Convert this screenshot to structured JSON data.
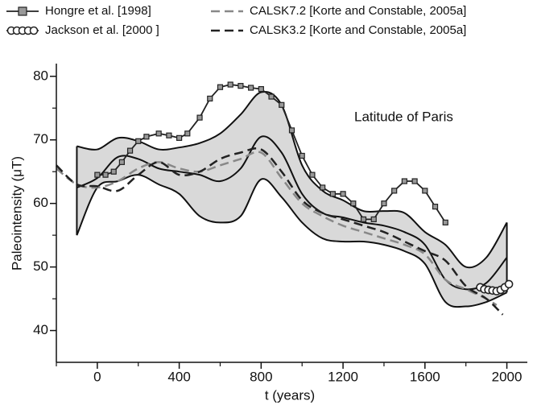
{
  "chart_data": {
    "type": "line",
    "ylabel": "Paleointensity (μT)",
    "xlabel": "t (years)",
    "annotation": "Latitude of Paris",
    "xlim": [
      -200,
      2100
    ],
    "xticks": [
      0,
      400,
      800,
      1200,
      1600,
      2000
    ],
    "xminorticks": [
      -200,
      200,
      600,
      1000,
      1400,
      1800
    ],
    "ylim": [
      35,
      82
    ],
    "yticks": [
      40,
      50,
      60,
      70,
      80
    ],
    "yminorticks": [
      45,
      55,
      65,
      75
    ],
    "legend": "top-left",
    "band": {
      "color": "#d9d9d9",
      "x": [
        -100,
        0,
        100,
        200,
        300,
        400,
        500,
        600,
        700,
        800,
        900,
        1000,
        1100,
        1200,
        1300,
        1400,
        1500,
        1600,
        1700,
        1800,
        1900,
        2000
      ],
      "upper": [
        69,
        68.5,
        70.3,
        69.8,
        68.5,
        68.8,
        69.5,
        71,
        74,
        77.5,
        75.5,
        66,
        62,
        60.5,
        58.8,
        58.8,
        58.5,
        55.5,
        53.5,
        50,
        51.5,
        57
      ],
      "lower": [
        55,
        62.5,
        63.5,
        64.5,
        63,
        61.5,
        58,
        57,
        58,
        63.8,
        61,
        57,
        54.5,
        54,
        54,
        53.5,
        52.5,
        50.5,
        44.5,
        43.8,
        44.5,
        46
      ],
      "center": [
        62.5,
        64,
        67.3,
        67,
        65.5,
        65,
        64.5,
        63.5,
        65.5,
        70.5,
        68,
        61.5,
        58.5,
        57.8,
        57,
        56.5,
        55.5,
        53.5,
        48,
        46.5,
        47.5,
        51.5
      ]
    },
    "series": [
      {
        "name": "Hongre et al. [1998]",
        "color": "#222222",
        "marker": "square",
        "dash": false,
        "x": [
          0,
          40,
          80,
          120,
          160,
          200,
          240,
          300,
          350,
          400,
          440,
          500,
          550,
          600,
          650,
          700,
          750,
          800,
          850,
          900,
          950,
          1000,
          1050,
          1100,
          1150,
          1200,
          1250,
          1300,
          1350,
          1400,
          1450,
          1500,
          1550,
          1600,
          1650,
          1700
        ],
        "values": [
          64.5,
          64.5,
          65,
          66.5,
          68.3,
          69.8,
          70.5,
          71,
          70.7,
          70.3,
          71,
          73.5,
          76.5,
          78.3,
          78.7,
          78.5,
          78.2,
          78,
          76.8,
          75.5,
          71.5,
          67.5,
          64.5,
          62.5,
          61.5,
          61.5,
          60,
          57.5,
          57.5,
          60,
          62,
          63.5,
          63.5,
          62,
          59.5,
          57
        ]
      },
      {
        "name": "Jackson et al. [2000 ]",
        "color": "#222222",
        "marker": "circle",
        "dash": false,
        "x": [
          1870,
          1890,
          1910,
          1930,
          1950,
          1970,
          1990,
          2010
        ],
        "values": [
          46.8,
          46.5,
          46.4,
          46.3,
          46.2,
          46.4,
          46.8,
          47.3
        ]
      },
      {
        "name": "CALSK7.2 [Korte and Constable, 2005a]",
        "color": "#888888",
        "marker": "none",
        "dash": true,
        "x": [
          -200,
          -100,
          0,
          100,
          200,
          300,
          400,
          500,
          600,
          700,
          800,
          900,
          1000,
          1100,
          1200,
          1300,
          1400,
          1500,
          1600,
          1700,
          1800,
          1900,
          1950
        ],
        "values": [
          65.5,
          63,
          62.5,
          63.5,
          65.5,
          66.5,
          65.5,
          65,
          66,
          67,
          68,
          64,
          60,
          58,
          56.5,
          55.5,
          54.5,
          53.5,
          52,
          48,
          46.5,
          45,
          44
        ]
      },
      {
        "name": "CALSK3.2 [Korte and Constable, 2005a]",
        "color": "#222222",
        "marker": "none",
        "dash": true,
        "x": [
          -200,
          -100,
          0,
          100,
          200,
          300,
          400,
          500,
          600,
          700,
          800,
          900,
          1000,
          1100,
          1200,
          1300,
          1400,
          1500,
          1600,
          1700,
          1800,
          1900,
          1980
        ],
        "values": [
          66,
          63,
          62.7,
          62,
          64.5,
          66.5,
          64.5,
          65,
          67,
          68,
          68.5,
          65,
          60.5,
          58.5,
          57.5,
          56.5,
          55.5,
          54,
          52.5,
          51,
          47,
          45,
          42.5
        ]
      }
    ]
  }
}
